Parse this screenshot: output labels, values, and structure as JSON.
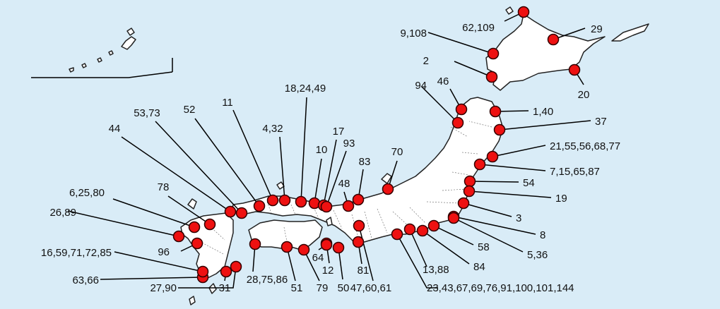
{
  "map": {
    "colors": {
      "sea": "#d9ecf7",
      "land": "#ffffff",
      "marker": "#ee1111",
      "text": "#111111"
    },
    "sites": [
      {
        "label": "62,109"
      },
      {
        "label": "29"
      },
      {
        "label": "9,108"
      },
      {
        "label": "2"
      },
      {
        "label": "20"
      },
      {
        "label": "94"
      },
      {
        "label": "46"
      },
      {
        "label": "1,40"
      },
      {
        "label": "37"
      },
      {
        "label": "21,55,56,68,77"
      },
      {
        "label": "7,15,65,87"
      },
      {
        "label": "54"
      },
      {
        "label": "19"
      },
      {
        "label": "3"
      },
      {
        "label": "8"
      },
      {
        "label": "5,36"
      },
      {
        "label": "58"
      },
      {
        "label": "84"
      },
      {
        "label": "13,88"
      },
      {
        "label": "23,43,67,69,76,91,100,101,144"
      },
      {
        "label": "47,60,61"
      },
      {
        "label": "81"
      },
      {
        "label": "50"
      },
      {
        "label": "12"
      },
      {
        "label": "64"
      },
      {
        "label": "79"
      },
      {
        "label": "51"
      },
      {
        "label": "28,75,86"
      },
      {
        "label": "31"
      },
      {
        "label": "27,90"
      },
      {
        "label": "63,66"
      },
      {
        "label": "16,59,71,72,85"
      },
      {
        "label": "96"
      },
      {
        "label": "26,89"
      },
      {
        "label": "6,25,80"
      },
      {
        "label": "78"
      },
      {
        "label": "44"
      },
      {
        "label": "53,73"
      },
      {
        "label": "52"
      },
      {
        "label": "11"
      },
      {
        "label": "4,32"
      },
      {
        "label": "18,24,49"
      },
      {
        "label": "10"
      },
      {
        "label": "17"
      },
      {
        "label": "93"
      },
      {
        "label": "83"
      },
      {
        "label": "48"
      },
      {
        "label": "70"
      }
    ]
  }
}
